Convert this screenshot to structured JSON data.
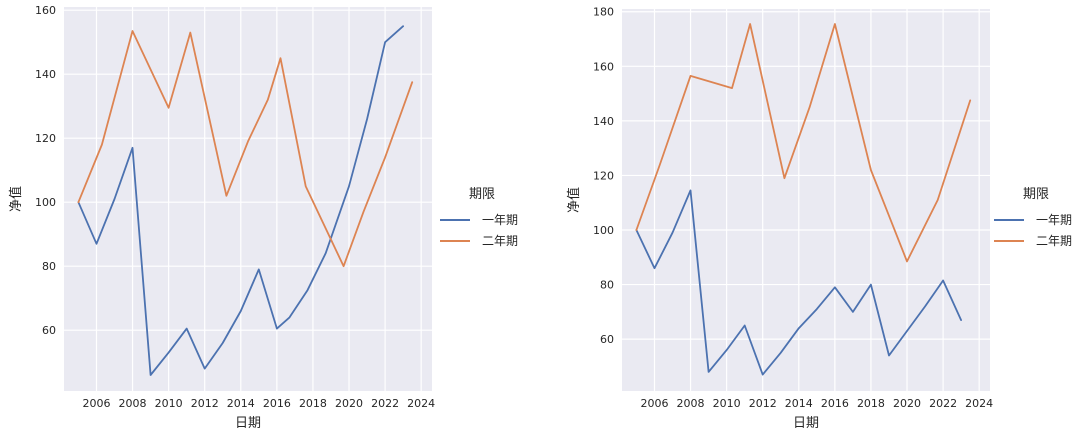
{
  "chart_data": [
    {
      "type": "line",
      "title": "",
      "xlabel": "日期",
      "ylabel": "净值",
      "xlim": [
        2004.2,
        2024.6
      ],
      "ylim": [
        41,
        161
      ],
      "xticks": [
        2006,
        2008,
        2010,
        2012,
        2014,
        2016,
        2018,
        2020,
        2022,
        2024
      ],
      "yticks": [
        60,
        80,
        100,
        120,
        140,
        160
      ],
      "grid": true,
      "legend": {
        "title": "期限",
        "placement": "right"
      },
      "series": [
        {
          "name": "一年期",
          "color": "#4c72b0",
          "x": [
            2005,
            2006,
            2007,
            2008,
            2009,
            2010,
            2011,
            2012,
            2013,
            2014,
            2015,
            2016,
            2016.7,
            2017.7,
            2018.7,
            2020,
            2021,
            2022,
            2023
          ],
          "y": [
            100,
            87,
            101,
            117,
            46,
            53,
            60.5,
            48,
            56,
            66,
            79,
            60.5,
            64,
            72.5,
            84,
            105,
            126,
            150,
            155
          ]
        },
        {
          "name": "二年期",
          "color": "#dd8452",
          "x": [
            2005,
            2006.3,
            2008,
            2010,
            2011.2,
            2013.2,
            2014.4,
            2015.5,
            2016.2,
            2017.6,
            2019.7,
            2020.8,
            2022,
            2023.5
          ],
          "y": [
            100,
            118,
            153.5,
            129.5,
            153,
            102,
            119,
            132,
            145,
            105,
            80,
            97,
            114,
            137.5
          ]
        }
      ]
    },
    {
      "type": "line",
      "title": "",
      "xlabel": "日期",
      "ylabel": "净值",
      "xlim": [
        2004.2,
        2024.6
      ],
      "ylim": [
        41,
        181
      ],
      "xticks": [
        2006,
        2008,
        2010,
        2012,
        2014,
        2016,
        2018,
        2020,
        2022,
        2024
      ],
      "yticks": [
        60,
        80,
        100,
        120,
        140,
        160,
        180
      ],
      "grid": true,
      "legend": {
        "title": "期限",
        "placement": "right"
      },
      "series": [
        {
          "name": "一年期",
          "color": "#4c72b0",
          "x": [
            2005,
            2006,
            2007,
            2008,
            2009,
            2010,
            2011,
            2012,
            2013,
            2014,
            2015,
            2016,
            2017,
            2018,
            2019,
            2020,
            2021,
            2022,
            2023
          ],
          "y": [
            100,
            86,
            99,
            114.5,
            48,
            56,
            65,
            47,
            55,
            64,
            71,
            79,
            70,
            80,
            54,
            63,
            72,
            81.5,
            67
          ]
        },
        {
          "name": "二年期",
          "color": "#dd8452",
          "x": [
            2005,
            2006.3,
            2008,
            2010.3,
            2011.3,
            2013.2,
            2014.6,
            2016,
            2018,
            2020,
            2021.7,
            2023.5
          ],
          "y": [
            100,
            124,
            156.5,
            152,
            175.5,
            119,
            145,
            175.5,
            122,
            88.5,
            111,
            147.5
          ]
        }
      ]
    }
  ]
}
